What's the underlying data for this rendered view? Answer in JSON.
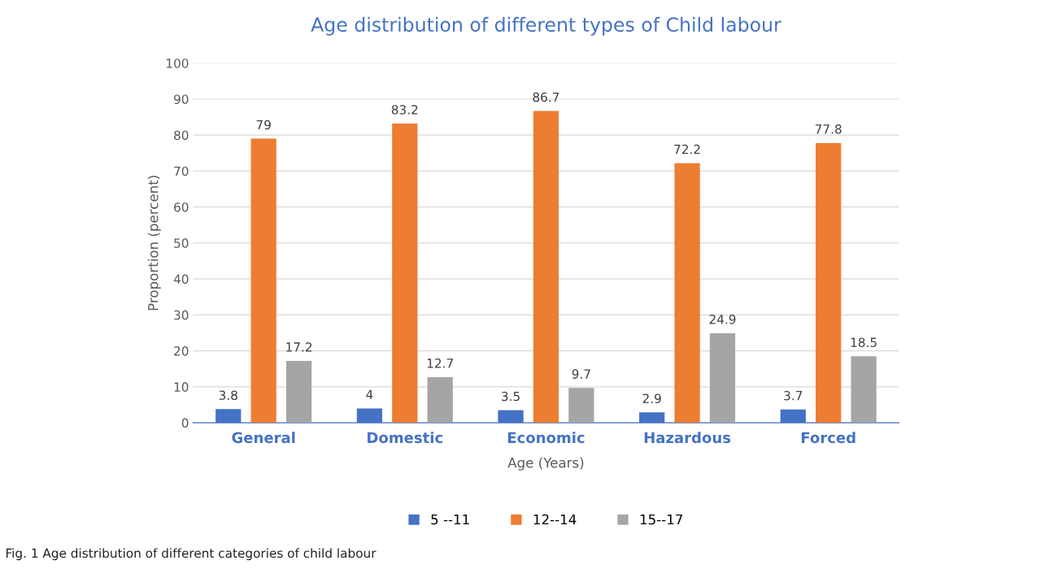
{
  "chart_data": {
    "type": "bar",
    "title": "Age distribution of different types of Child labour",
    "xlabel": "Age (Years)",
    "ylabel": "Proportion (percent)",
    "categories": [
      "General",
      "Domestic",
      "Economic",
      "Hazardous",
      "Forced"
    ],
    "series": [
      {
        "name": "5 --11",
        "color": "#4472c4",
        "values": [
          3.8,
          4,
          3.5,
          2.9,
          3.7
        ]
      },
      {
        "name": "12--14",
        "color": "#ed7d31",
        "values": [
          79,
          83.2,
          86.7,
          72.2,
          77.8
        ]
      },
      {
        "name": "15--17",
        "color": "#a5a5a5",
        "values": [
          17.2,
          12.7,
          9.7,
          24.9,
          18.5
        ]
      }
    ],
    "ylim": [
      0,
      100
    ],
    "yticks": [
      0,
      10,
      20,
      30,
      40,
      50,
      60,
      70,
      80,
      90,
      100
    ],
    "grid": "y",
    "legend": "bottom",
    "data_labels": true,
    "annotations": [
      "Fig. 1 Age distribution of different categories of child labour"
    ]
  }
}
